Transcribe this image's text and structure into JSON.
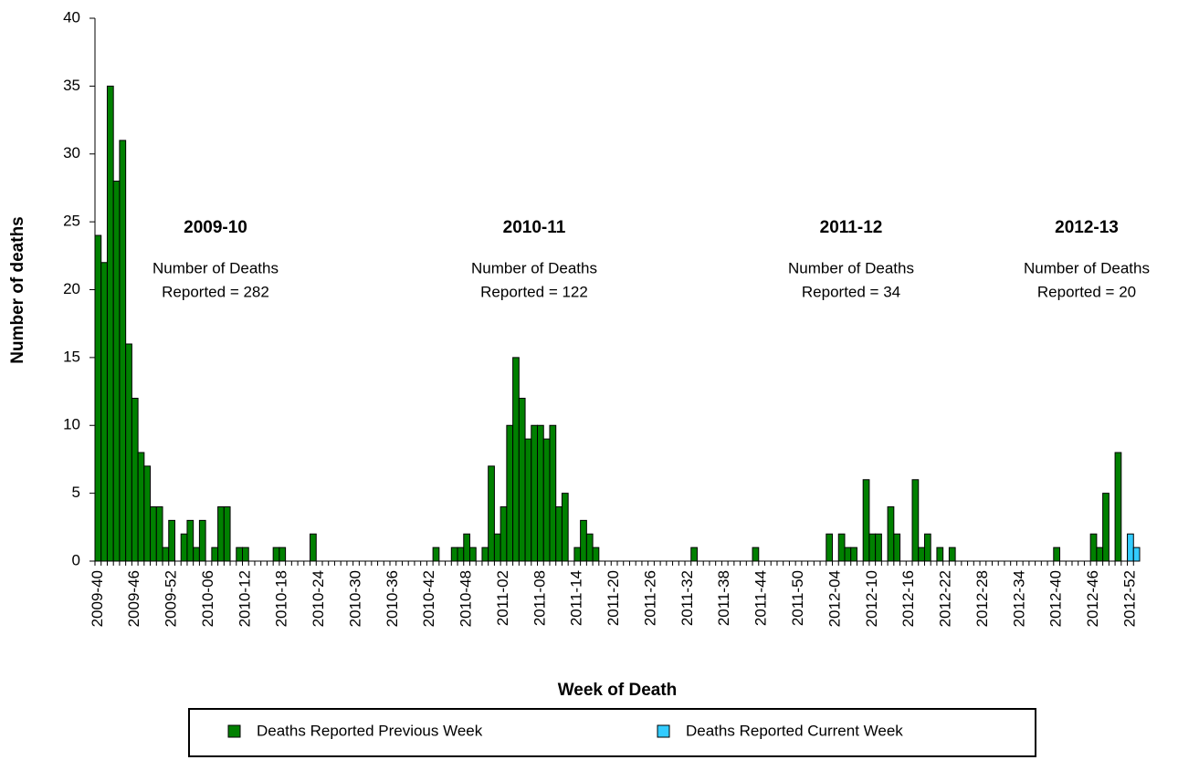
{
  "chart_data": {
    "type": "bar",
    "stacked": true,
    "x_label": "Week of Death",
    "y_label": "Number of deaths",
    "categories": [
      "2009-40",
      null,
      null,
      null,
      null,
      null,
      "2009-46",
      null,
      null,
      null,
      null,
      null,
      "2009-52",
      null,
      null,
      null,
      null,
      null,
      "2010-06",
      null,
      null,
      null,
      null,
      null,
      "2010-12",
      null,
      null,
      null,
      null,
      null,
      "2010-18",
      null,
      null,
      null,
      null,
      null,
      "2010-24",
      null,
      null,
      null,
      null,
      null,
      "2010-30",
      null,
      null,
      null,
      null,
      null,
      "2010-36",
      null,
      null,
      null,
      null,
      null,
      "2010-42",
      null,
      null,
      null,
      null,
      null,
      "2010-48",
      null,
      null,
      null,
      null,
      null,
      "2011-02",
      null,
      null,
      null,
      null,
      null,
      "2011-08",
      null,
      null,
      null,
      null,
      null,
      "2011-14",
      null,
      null,
      null,
      null,
      null,
      "2011-20",
      null,
      null,
      null,
      null,
      null,
      "2011-26",
      null,
      null,
      null,
      null,
      null,
      "2011-32",
      null,
      null,
      null,
      null,
      null,
      "2011-38",
      null,
      null,
      null,
      null,
      null,
      "2011-44",
      null,
      null,
      null,
      null,
      null,
      "2011-50",
      null,
      null,
      null,
      null,
      null,
      "2012-04",
      null,
      null,
      null,
      null,
      null,
      "2012-10",
      null,
      null,
      null,
      null,
      null,
      "2012-16",
      null,
      null,
      null,
      null,
      null,
      "2012-22",
      null,
      null,
      null,
      null,
      null,
      "2012-28",
      null,
      null,
      null,
      null,
      null,
      "2012-34",
      null,
      null,
      null,
      null,
      null,
      "2012-40",
      null,
      null,
      null,
      null,
      null,
      "2012-46",
      null,
      null,
      null,
      null,
      null,
      "2012-52",
      null
    ],
    "series": [
      {
        "name": "Deaths Reported Previous Week",
        "color": "#008000",
        "values": [
          24,
          22,
          35,
          28,
          31,
          16,
          12,
          8,
          7,
          4,
          4,
          1,
          3,
          0,
          2,
          3,
          1,
          3,
          0,
          1,
          4,
          4,
          0,
          1,
          1,
          0,
          0,
          0,
          0,
          1,
          1,
          0,
          0,
          0,
          0,
          2,
          0,
          0,
          0,
          0,
          0,
          0,
          0,
          0,
          0,
          0,
          0,
          0,
          0,
          0,
          0,
          0,
          0,
          0,
          0,
          1,
          0,
          0,
          1,
          1,
          2,
          1,
          0,
          1,
          7,
          2,
          4,
          10,
          15,
          12,
          9,
          10,
          10,
          9,
          10,
          4,
          5,
          0,
          1,
          3,
          2,
          1,
          0,
          0,
          0,
          0,
          0,
          0,
          0,
          0,
          0,
          0,
          0,
          0,
          0,
          0,
          0,
          1,
          0,
          0,
          0,
          0,
          0,
          0,
          0,
          0,
          0,
          1,
          0,
          0,
          0,
          0,
          0,
          0,
          0,
          0,
          0,
          0,
          0,
          2,
          0,
          2,
          1,
          1,
          0,
          6,
          2,
          2,
          0,
          4,
          2,
          0,
          0,
          6,
          1,
          2,
          0,
          1,
          0,
          1,
          0,
          0,
          0,
          0,
          0,
          0,
          0,
          0,
          0,
          0,
          0,
          0,
          0,
          0,
          0,
          0,
          1,
          0,
          0,
          0,
          0,
          0,
          2,
          1,
          5,
          0,
          8,
          0,
          0,
          0
        ]
      },
      {
        "name": "Deaths Reported Current Week",
        "color": "#33ccff",
        "values": [
          0,
          0,
          0,
          0,
          0,
          0,
          0,
          0,
          0,
          0,
          0,
          0,
          0,
          0,
          0,
          0,
          0,
          0,
          0,
          0,
          0,
          0,
          0,
          0,
          0,
          0,
          0,
          0,
          0,
          0,
          0,
          0,
          0,
          0,
          0,
          0,
          0,
          0,
          0,
          0,
          0,
          0,
          0,
          0,
          0,
          0,
          0,
          0,
          0,
          0,
          0,
          0,
          0,
          0,
          0,
          0,
          0,
          0,
          0,
          0,
          0,
          0,
          0,
          0,
          0,
          0,
          0,
          0,
          0,
          0,
          0,
          0,
          0,
          0,
          0,
          0,
          0,
          0,
          0,
          0,
          0,
          0,
          0,
          0,
          0,
          0,
          0,
          0,
          0,
          0,
          0,
          0,
          0,
          0,
          0,
          0,
          0,
          0,
          0,
          0,
          0,
          0,
          0,
          0,
          0,
          0,
          0,
          0,
          0,
          0,
          0,
          0,
          0,
          0,
          0,
          0,
          0,
          0,
          0,
          0,
          0,
          0,
          0,
          0,
          0,
          0,
          0,
          0,
          0,
          0,
          0,
          0,
          0,
          0,
          0,
          0,
          0,
          0,
          0,
          0,
          0,
          0,
          0,
          0,
          0,
          0,
          0,
          0,
          0,
          0,
          0,
          0,
          0,
          0,
          0,
          0,
          0,
          0,
          0,
          0,
          0,
          0,
          0,
          0,
          0,
          0,
          0,
          0,
          2,
          1
        ]
      }
    ],
    "ylim": [
      0,
      40
    ],
    "yticks": [
      0,
      5,
      10,
      15,
      20,
      25,
      30,
      35,
      40
    ],
    "grid": false,
    "legend": "bottom",
    "annotations": [
      {
        "title": "2009-10",
        "lines": [
          "Number of Deaths",
          "Reported = 282"
        ]
      },
      {
        "title": "2010-11",
        "lines": [
          "Number of Deaths",
          "Reported = 122"
        ]
      },
      {
        "title": "2011-12",
        "lines": [
          "Number of Deaths",
          "Reported = 34"
        ]
      },
      {
        "title": "2012-13",
        "lines": [
          "Number of Deaths",
          "Reported = 20"
        ]
      }
    ]
  }
}
